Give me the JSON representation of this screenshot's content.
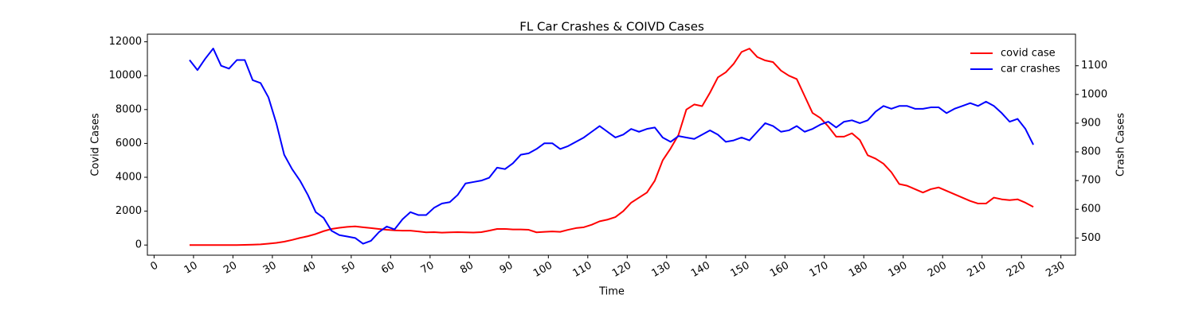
{
  "chart_data": {
    "type": "line",
    "title": "FL Car Crashes & COIVD Cases",
    "xlabel": "Time",
    "ylabel": "Covid Cases",
    "y2label": "Crash Cases",
    "x": [
      9,
      11,
      13,
      15,
      17,
      19,
      21,
      23,
      25,
      27,
      29,
      31,
      33,
      35,
      37,
      39,
      41,
      43,
      45,
      47,
      49,
      51,
      53,
      55,
      57,
      59,
      61,
      63,
      65,
      67,
      69,
      71,
      73,
      75,
      77,
      79,
      81,
      83,
      85,
      87,
      89,
      91,
      93,
      95,
      97,
      99,
      101,
      103,
      105,
      107,
      109,
      111,
      113,
      115,
      117,
      119,
      121,
      123,
      125,
      127,
      129,
      131,
      133,
      135,
      137,
      139,
      141,
      143,
      145,
      147,
      149,
      151,
      153,
      155,
      157,
      159,
      161,
      163,
      165,
      167,
      169,
      171,
      173,
      175,
      177,
      179,
      181,
      183,
      185,
      187,
      189,
      191,
      193,
      195,
      197,
      199,
      201,
      203,
      205,
      207,
      209,
      211,
      213,
      215,
      217,
      219,
      221,
      223
    ],
    "series": [
      {
        "name": "covid case",
        "color": "#ff0000",
        "axis": "y",
        "values": [
          0,
          0,
          0,
          0,
          0,
          0,
          0,
          10,
          20,
          40,
          80,
          130,
          200,
          300,
          420,
          520,
          650,
          820,
          950,
          1020,
          1070,
          1100,
          1050,
          1000,
          950,
          900,
          870,
          850,
          850,
          800,
          750,
          760,
          730,
          750,
          760,
          750,
          740,
          760,
          850,
          950,
          950,
          920,
          920,
          900,
          750,
          780,
          800,
          780,
          900,
          1000,
          1050,
          1200,
          1400,
          1500,
          1650,
          2000,
          2500,
          2800,
          3100,
          3800,
          5000,
          5700,
          6500,
          8000,
          8300,
          8200,
          9000,
          9900,
          10200,
          10700,
          11400,
          11600,
          11100,
          10900,
          10800,
          10300,
          10000,
          9800,
          8800,
          7800,
          7500,
          7000,
          6400,
          6400,
          6600,
          6200,
          5300,
          5100,
          4800,
          4300,
          3600,
          3500,
          3300,
          3100,
          3300,
          3400,
          3200,
          3000,
          2800,
          2600,
          2450,
          2450,
          2800,
          2700,
          2650,
          2700,
          2500,
          2250
        ]
      },
      {
        "name": "car crashes",
        "color": "#0000ff",
        "axis": "y2",
        "values": [
          1120,
          1085,
          1125,
          1160,
          1100,
          1090,
          1120,
          1120,
          1050,
          1040,
          990,
          900,
          790,
          740,
          700,
          650,
          590,
          570,
          525,
          510,
          505,
          500,
          480,
          490,
          520,
          540,
          530,
          565,
          590,
          580,
          580,
          605,
          620,
          625,
          650,
          690,
          695,
          700,
          710,
          745,
          740,
          760,
          790,
          795,
          810,
          830,
          830,
          810,
          820,
          835,
          850,
          870,
          890,
          870,
          850,
          860,
          880,
          870,
          880,
          885,
          850,
          835,
          855,
          850,
          845,
          860,
          875,
          860,
          835,
          840,
          850,
          840,
          870,
          900,
          890,
          870,
          875,
          890,
          870,
          880,
          895,
          905,
          885,
          905,
          910,
          900,
          910,
          940,
          960,
          950,
          960,
          960,
          950,
          950,
          955,
          955,
          935,
          950,
          960,
          970,
          960,
          975,
          960,
          935,
          905,
          915,
          880,
          825
        ]
      }
    ],
    "xlim": [
      -1.7,
      233.7
    ],
    "xticks": [
      0,
      10,
      20,
      30,
      40,
      50,
      60,
      70,
      80,
      90,
      100,
      110,
      120,
      130,
      140,
      150,
      160,
      170,
      180,
      190,
      200,
      210,
      220,
      230
    ],
    "ylim": [
      -600,
      12450
    ],
    "yticks": [
      0,
      2000,
      4000,
      6000,
      8000,
      10000,
      12000
    ],
    "y2lim": [
      440,
      1210
    ],
    "y2ticks": [
      500,
      600,
      700,
      800,
      900,
      1000,
      1100
    ],
    "grid": false,
    "legend": "upper right"
  }
}
